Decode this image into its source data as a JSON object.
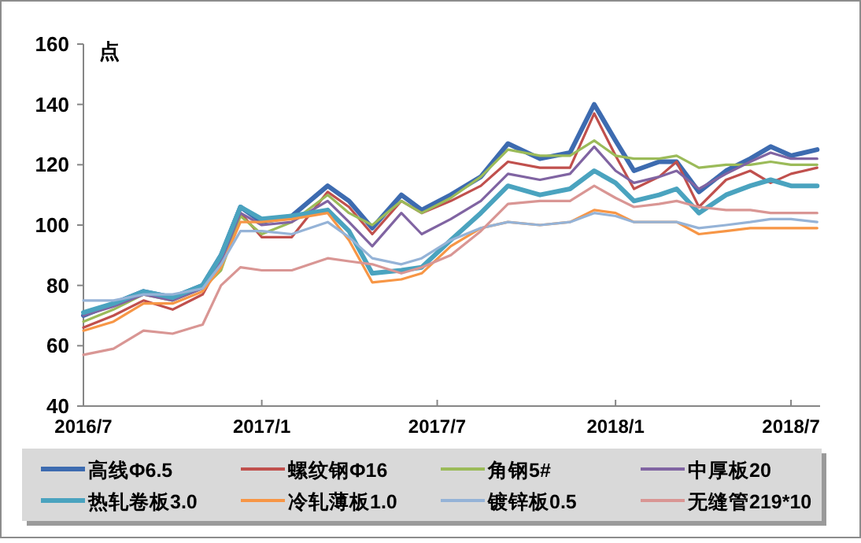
{
  "chart_data": {
    "type": "line",
    "ylabel": "点",
    "legend": "bottom",
    "grid": false,
    "x": [
      "2016-07-01",
      "2016-08-01",
      "2016-09-01",
      "2016-10-01",
      "2016-11-01",
      "2016-11-20",
      "2016-12-10",
      "2017-01-01",
      "2017-02-01",
      "2017-03-10",
      "2017-04-01",
      "2017-04-25",
      "2017-05-25",
      "2017-06-15",
      "2017-07-15",
      "2017-08-15",
      "2017-09-12",
      "2017-10-15",
      "2017-11-15",
      "2017-12-10",
      "2018-01-01",
      "2018-01-20",
      "2018-02-15",
      "2018-03-05",
      "2018-03-28",
      "2018-04-25",
      "2018-05-20",
      "2018-06-10",
      "2018-07-01",
      "2018-07-28"
    ],
    "xlim": [
      "2016-07-01",
      "2018-07-31"
    ],
    "xticks": [
      {
        "value": "2016-07",
        "label": "2016/7"
      },
      {
        "value": "2017-01",
        "label": "2017/1"
      },
      {
        "value": "2017-07",
        "label": "2017/7"
      },
      {
        "value": "2018-01",
        "label": "2018/1"
      },
      {
        "value": "2018-07",
        "label": "2018/7"
      }
    ],
    "ylim": [
      40,
      160
    ],
    "yticks": [
      40,
      60,
      80,
      100,
      120,
      140,
      160
    ],
    "series": [
      {
        "name": "高线Φ6.5",
        "color": "#3d6bb0",
        "values": [
          70,
          74,
          78,
          76,
          80,
          90,
          106,
          101,
          103,
          113,
          108,
          99,
          110,
          105,
          110,
          116,
          127,
          122,
          124,
          140,
          128,
          118,
          121,
          121,
          111,
          118,
          122,
          126,
          123,
          125
        ]
      },
      {
        "name": "螺纹钢Φ16",
        "color": "#c0504d",
        "values": [
          66,
          70,
          75,
          72,
          77,
          88,
          104,
          96,
          96,
          111,
          106,
          97,
          108,
          104,
          108,
          113,
          121,
          119,
          119,
          137,
          123,
          112,
          116,
          121,
          106,
          115,
          118,
          114,
          117,
          119
        ]
      },
      {
        "name": "角钢5#",
        "color": "#9bbb59",
        "values": [
          68,
          72,
          77,
          75,
          79,
          85,
          103,
          97,
          101,
          110,
          104,
          100,
          108,
          104,
          109,
          116,
          125,
          123,
          123,
          128,
          123,
          122,
          122,
          123,
          119,
          120,
          120,
          121,
          120,
          120
        ]
      },
      {
        "name": "中厚板20",
        "color": "#8064a2",
        "values": [
          70,
          73,
          77,
          75,
          79,
          88,
          104,
          100,
          101,
          108,
          101,
          93,
          104,
          97,
          102,
          108,
          117,
          115,
          117,
          126,
          118,
          114,
          116,
          118,
          112,
          117,
          121,
          124,
          122,
          122
        ]
      },
      {
        "name": "热轧卷板3.0",
        "color": "#4aa3bf",
        "values": [
          71,
          74,
          78,
          76,
          80,
          90,
          106,
          102,
          103,
          105,
          98,
          84,
          85,
          86,
          95,
          104,
          113,
          110,
          112,
          118,
          114,
          108,
          110,
          112,
          104,
          110,
          113,
          115,
          113,
          113
        ]
      },
      {
        "name": "冷轧薄板1.0",
        "color": "#f79646",
        "values": [
          65,
          68,
          74,
          74,
          78,
          86,
          101,
          101,
          102,
          104,
          95,
          81,
          82,
          84,
          93,
          99,
          101,
          100,
          101,
          105,
          104,
          101,
          101,
          101,
          97,
          98,
          99,
          99,
          99,
          99
        ]
      },
      {
        "name": "镀锌板0.5",
        "color": "#95b3d7",
        "values": [
          75,
          75,
          77,
          77,
          79,
          87,
          98,
          98,
          97,
          101,
          96,
          89,
          87,
          89,
          95,
          99,
          101,
          100,
          101,
          104,
          103,
          101,
          101,
          101,
          99,
          100,
          101,
          102,
          102,
          101
        ]
      },
      {
        "name": "无缝管219*10",
        "color": "#d99694",
        "values": [
          57,
          59,
          65,
          64,
          67,
          80,
          86,
          85,
          85,
          89,
          88,
          87,
          84,
          86,
          90,
          98,
          107,
          108,
          108,
          113,
          109,
          106,
          107,
          108,
          106,
          105,
          105,
          104,
          104,
          104
        ]
      }
    ]
  }
}
